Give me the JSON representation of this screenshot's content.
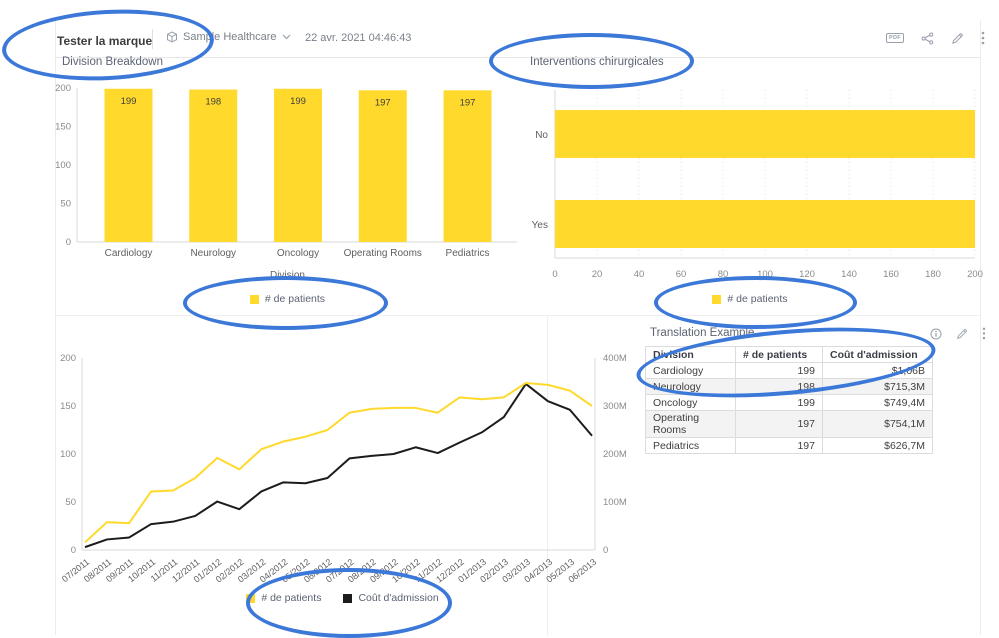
{
  "header": {
    "title": "Tester la marque",
    "dataset_label": "Sample Healthcare",
    "timestamp": "22 avr. 2021 04:46:43",
    "pdf_label": "PDF",
    "icons": [
      "pdf-export",
      "share",
      "edit",
      "more-options"
    ]
  },
  "widgets": {
    "division_breakdown": {
      "title": "Division Breakdown",
      "xlabel": "Division",
      "legend": "# de patients"
    },
    "interventions": {
      "title": "Interventions chirurgicales",
      "legend": "# de patients"
    },
    "trend": {
      "legend_patients": "# de patients",
      "legend_cost": "Coût d'admission"
    },
    "table": {
      "title": "Translation Example",
      "columns": [
        "Division",
        "# de patients",
        "Coût d'admission"
      ],
      "rows": [
        [
          "Cardiology",
          "199",
          "$1,06B"
        ],
        [
          "Neurology",
          "198",
          "$715,3M"
        ],
        [
          "Oncology",
          "199",
          "$749,4M"
        ],
        [
          "Operating Rooms",
          "197",
          "$754,1M"
        ],
        [
          "Pediatrics",
          "197",
          "$626,7M"
        ]
      ],
      "icons": [
        "info",
        "edit",
        "more-options"
      ]
    }
  },
  "colors": {
    "accent_yellow": "#ffd92c",
    "series_black": "#1c1c1c",
    "annotation_blue": "#3b78d8",
    "axis_line": "#d9d9d9",
    "tick_text": "#8a8a8a",
    "category_text": "#5f5f5f"
  },
  "chart_data": [
    {
      "id": "division_breakdown",
      "type": "bar",
      "title": "Division Breakdown",
      "categories": [
        "Cardiology",
        "Neurology",
        "Oncology",
        "Operating Rooms",
        "Pediatrics"
      ],
      "values": [
        199,
        198,
        199,
        197,
        197
      ],
      "xlabel": "Division",
      "ylabel": "",
      "ylim": [
        0,
        200
      ],
      "yticks": [
        0,
        50,
        100,
        150,
        200
      ],
      "legend": [
        "# de patients"
      ],
      "legend_position": "bottom",
      "grid": false
    },
    {
      "id": "interventions_chirurgicales",
      "type": "bar",
      "orientation": "horizontal",
      "title": "Interventions chirurgicales",
      "categories": [
        "No",
        "Yes"
      ],
      "values": [
        200,
        200
      ],
      "xlim": [
        0,
        200
      ],
      "xticks": [
        0,
        20,
        40,
        60,
        80,
        100,
        120,
        140,
        160,
        180,
        200
      ],
      "legend": [
        "# de patients"
      ],
      "legend_position": "bottom",
      "grid": true
    },
    {
      "id": "patients_cost_trend",
      "type": "line",
      "x": [
        "07/2011",
        "08/2011",
        "09/2011",
        "10/2011",
        "11/2011",
        "12/2011",
        "01/2012",
        "02/2012",
        "03/2012",
        "04/2012",
        "05/2012",
        "06/2012",
        "07/2012",
        "08/2012",
        "09/2012",
        "10/2012",
        "11/2012",
        "12/2012",
        "01/2013",
        "02/2013",
        "03/2013",
        "04/2013",
        "05/2013",
        "06/2013"
      ],
      "series": [
        {
          "name": "# de patients",
          "axis": "left",
          "color": "#ffd92c",
          "values": [
            8,
            29,
            28,
            61,
            62,
            75,
            96,
            84,
            105,
            113,
            118,
            125,
            143,
            147,
            148,
            148,
            143,
            159,
            157,
            159,
            174,
            172,
            166,
            150
          ]
        },
        {
          "name": "Coût d'admission",
          "axis": "right",
          "color": "#1c1c1c",
          "values_millions": [
            6,
            22,
            26,
            54,
            59,
            71,
            101,
            85,
            122,
            141,
            139,
            150,
            191,
            196,
            200,
            214,
            202,
            224,
            245,
            277,
            346,
            310,
            292,
            238
          ]
        }
      ],
      "left_ylim": [
        0,
        200
      ],
      "left_yticks": [
        0,
        50,
        100,
        150,
        200
      ],
      "right_ylim_millions": [
        0,
        400
      ],
      "right_ytick_labels": [
        "0",
        "100M",
        "200M",
        "300M",
        "400M"
      ],
      "legend_position": "bottom",
      "grid": false
    }
  ]
}
